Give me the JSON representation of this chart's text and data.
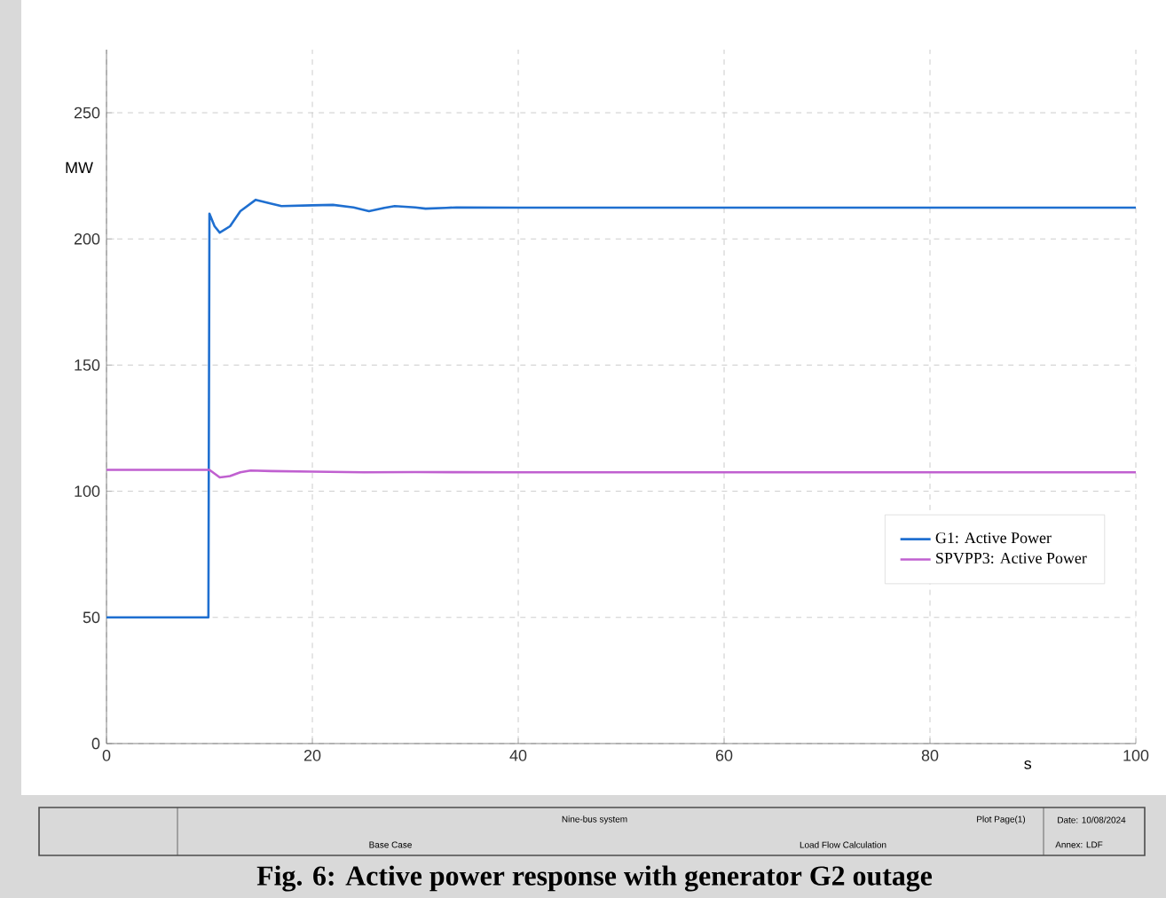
{
  "chart_data": {
    "type": "line",
    "title": "Fig. 6: Active power response with generator G2 outage",
    "xlabel": "s",
    "ylabel": "MW",
    "xlim": [
      0,
      100
    ],
    "xticks": [
      0,
      20,
      40,
      60,
      80,
      100
    ],
    "ylim": [
      0,
      275
    ],
    "yticks": [
      0,
      50,
      100,
      150,
      200,
      250
    ],
    "grid": true,
    "legend": "right",
    "series": [
      {
        "name": "G1: Active Power",
        "color": "#1f6fd0",
        "x": [
          0,
          9.9,
          10,
          10.5,
          11,
          12,
          13,
          14.5,
          16,
          17,
          20,
          22,
          24,
          25.5,
          27,
          28,
          30,
          31,
          33,
          34,
          40,
          60,
          80,
          100
        ],
        "values": [
          50,
          50,
          210,
          205,
          202.5,
          205,
          211,
          215.5,
          214,
          213,
          213.3,
          213.5,
          212.5,
          211,
          212.3,
          213,
          212.5,
          212,
          212.3,
          212.5,
          212.4,
          212.4,
          212.4,
          212.4
        ]
      },
      {
        "name": "SPVPP3: Active Power",
        "color": "#c060d0",
        "x": [
          0,
          10,
          11,
          12,
          13,
          14,
          16,
          20,
          25,
          30,
          40,
          60,
          80,
          100
        ],
        "values": [
          108.5,
          108.5,
          105.5,
          106,
          107.5,
          108.2,
          108,
          107.8,
          107.5,
          107.6,
          107.5,
          107.5,
          107.5,
          107.5
        ]
      }
    ],
    "annotations": [
      "Nine-bus system",
      "Base Case",
      "Load Flow Calculation",
      "Plot Page(1)",
      "Date: 10/08/2024",
      "Annex: LDF"
    ]
  }
}
